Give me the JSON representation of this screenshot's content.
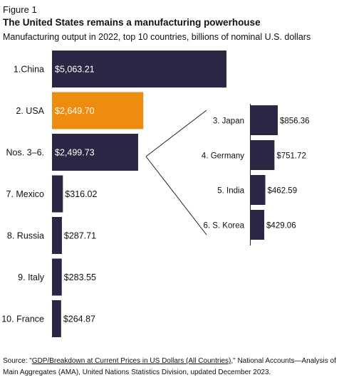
{
  "figure_label": "Figure 1",
  "chart_data": {
    "type": "bar",
    "title": "The United States remains a manufacturing powerhouse",
    "subtitle": "Manufacturing output in 2022, top 10 countries, billions of nominal U.S. dollars",
    "main": {
      "categories": [
        "1.China",
        "2. USA",
        "Nos. 3–6.",
        "7. Mexico",
        "8. Russia",
        "9. Italy",
        "10. France"
      ],
      "values": [
        5063.21,
        2649.7,
        2499.73,
        316.02,
        287.71,
        283.55,
        264.87
      ],
      "value_labels": [
        "$5,063.21",
        "$2,649.70",
        "$2,499.73",
        "$316.02",
        "$287.71",
        "$283.55",
        "$264.87"
      ],
      "highlight_index": 1
    },
    "breakout": {
      "categories": [
        "3. Japan",
        "4. Germany",
        "5. India",
        "6. S. Korea"
      ],
      "values": [
        856.36,
        751.72,
        462.59,
        429.06
      ],
      "value_labels": [
        "$856.36",
        "$751.72",
        "$462.59",
        "$429.06"
      ]
    },
    "colors": {
      "bar": "#2b2644",
      "highlight": "#ee8c0f",
      "line": "#222222"
    }
  },
  "source": {
    "prefix": "Source: \"",
    "link": "GDP/Breakdown at Current Prices in US Dollars (All Countries)",
    "suffix": ",\" National Accounts—Analysis of Main Aggregates (AMA), United Nations Statistics Division, updated December 2023."
  }
}
